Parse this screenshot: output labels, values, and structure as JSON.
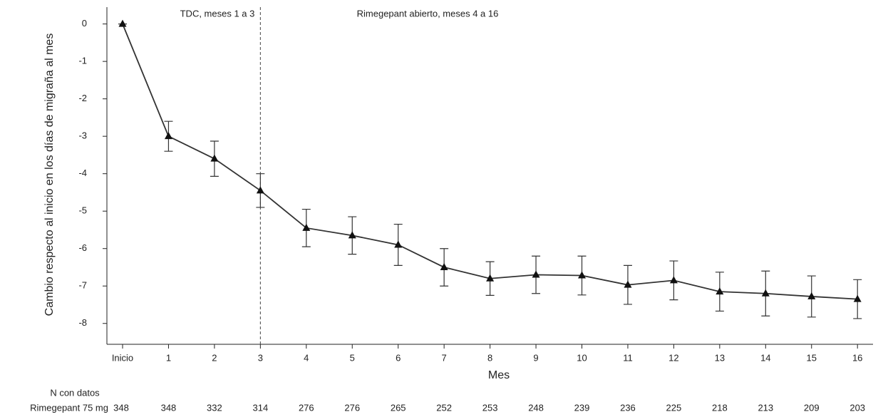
{
  "chart_data": {
    "type": "line",
    "y_label": "Cambio respecto al inicio en los días de migraña al mes",
    "x_label": "Mes",
    "annotations": [
      "TDC, meses 1 a 3",
      "Rimegepant abierto, meses 4 a 16"
    ],
    "categories": [
      "Inicio",
      "1",
      "2",
      "3",
      "4",
      "5",
      "6",
      "7",
      "8",
      "9",
      "10",
      "11",
      "12",
      "13",
      "14",
      "15",
      "16"
    ],
    "series": [
      {
        "color": "#333333",
        "values": [
          0,
          -3.0,
          -3.6,
          -4.45,
          -5.45,
          -5.65,
          -5.9,
          -6.5,
          -6.8,
          -6.7,
          -6.72,
          -6.97,
          -6.85,
          -7.15,
          -7.2,
          -7.28,
          -7.35
        ],
        "errors": [
          0,
          0.4,
          0.47,
          0.45,
          0.5,
          0.5,
          0.55,
          0.5,
          0.45,
          0.5,
          0.52,
          0.52,
          0.52,
          0.52,
          0.6,
          0.55,
          0.52
        ]
      }
    ],
    "ylim": [
      -8.5,
      0.45
    ],
    "yticks": [
      0,
      -1,
      -2,
      -3,
      -4,
      -5,
      -6,
      -7,
      -8
    ],
    "n_table": {
      "title": "N con datos",
      "row_label": "Rimegepant 75 mg",
      "values": [
        348,
        348,
        332,
        314,
        276,
        276,
        265,
        252,
        253,
        248,
        239,
        236,
        225,
        218,
        213,
        209,
        203
      ]
    }
  }
}
